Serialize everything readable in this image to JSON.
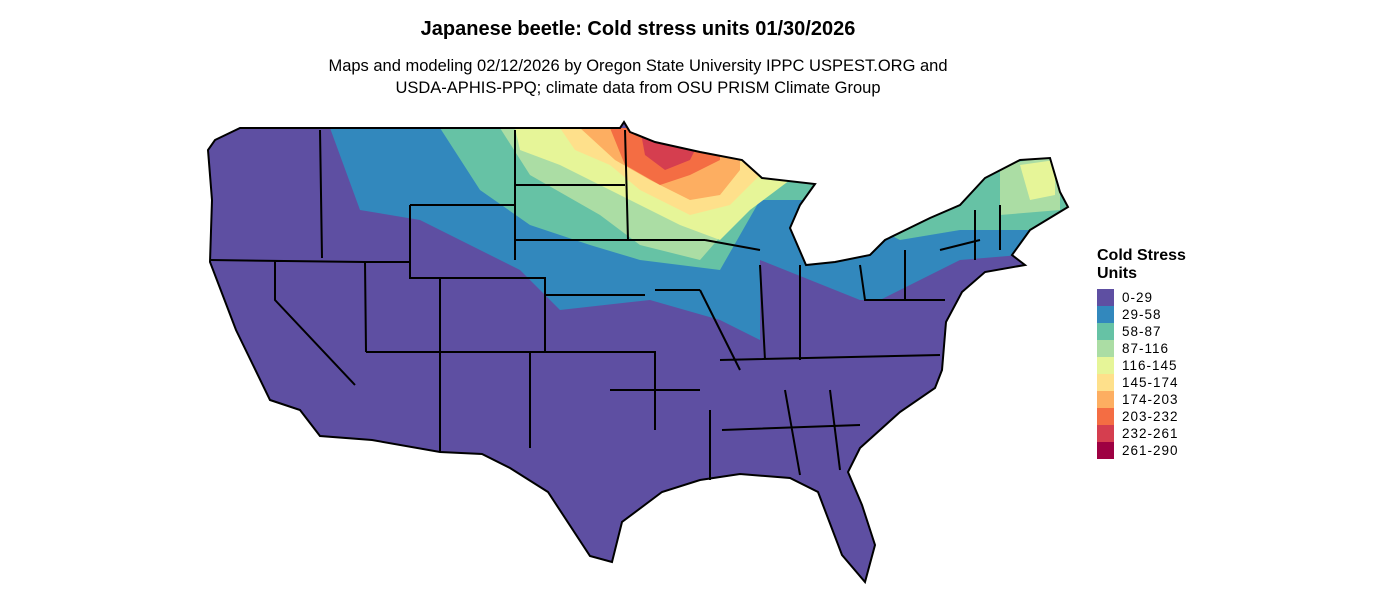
{
  "title": "Japanese beetle: Cold stress units 01/30/2026",
  "subtitle_lines": [
    "Maps and modeling 02/12/2026 by Oregon State University IPPC USPEST.ORG and",
    "USDA-APHIS-PPQ; climate data from OSU PRISM Climate Group"
  ],
  "legend": {
    "title_lines": [
      "Cold Stress",
      "Units"
    ],
    "items": [
      {
        "label": "0-29",
        "color": "#5E4FA2"
      },
      {
        "label": "29-58",
        "color": "#3288BD"
      },
      {
        "label": "58-87",
        "color": "#66C2A5"
      },
      {
        "label": "87-116",
        "color": "#ABDDA4"
      },
      {
        "label": "116-145",
        "color": "#E6F598"
      },
      {
        "label": "145-174",
        "color": "#FEE08B"
      },
      {
        "label": "174-203",
        "color": "#FDAE61"
      },
      {
        "label": "203-232",
        "color": "#F46D43"
      },
      {
        "label": "232-261",
        "color": "#D53E4F"
      },
      {
        "label": "261-290",
        "color": "#9E0142"
      }
    ]
  }
}
